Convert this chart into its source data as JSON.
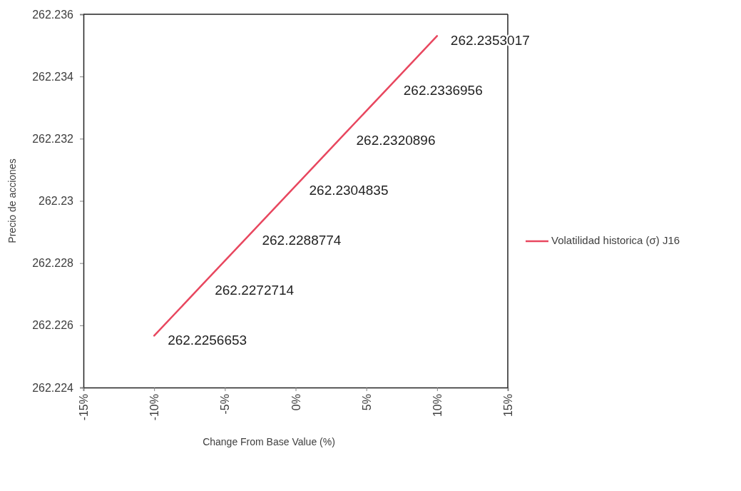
{
  "chart_data": {
    "type": "line",
    "xlabel": "Change From Base Value (%)",
    "ylabel": "Precio de acciones",
    "x": [
      -10,
      -6.67,
      -3.33,
      0,
      3.33,
      6.67,
      10
    ],
    "series": [
      {
        "name": "Volatilidad historica (σ) J16",
        "color": "#e8475f",
        "values": [
          262.2256653,
          262.2272714,
          262.2288774,
          262.2304835,
          262.2320896,
          262.2336956,
          262.2353017
        ]
      }
    ],
    "xlim": [
      -15,
      15
    ],
    "xticks": [
      {
        "value": -15,
        "label": "-15%"
      },
      {
        "value": -10,
        "label": "-10%"
      },
      {
        "value": -5,
        "label": "-5%"
      },
      {
        "value": 0,
        "label": "0%"
      },
      {
        "value": 5,
        "label": "5%"
      },
      {
        "value": 10,
        "label": "10%"
      },
      {
        "value": 15,
        "label": "15%"
      }
    ],
    "ylim": [
      262.224,
      262.236
    ],
    "yticks": [
      262.224,
      262.226,
      262.228,
      262.23,
      262.232,
      262.234,
      262.236
    ],
    "data_labels": true,
    "legend": "right",
    "grid": false,
    "marker": "none",
    "line_style": "solid"
  }
}
